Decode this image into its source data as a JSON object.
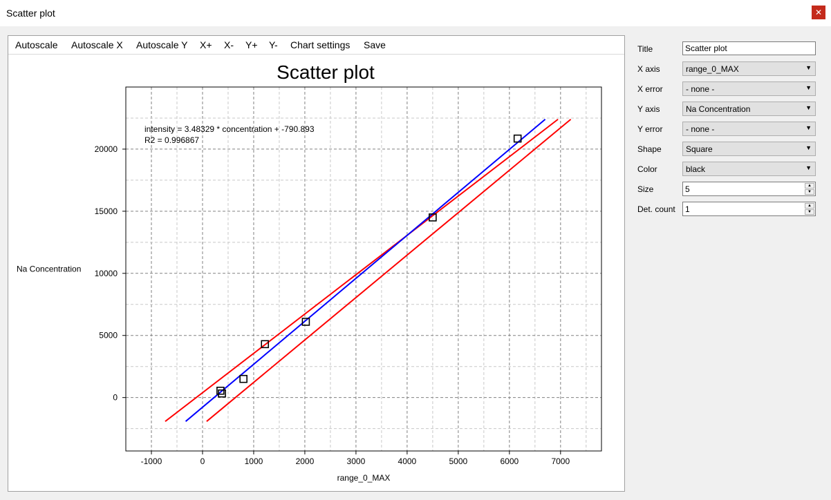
{
  "window": {
    "title": "Scatter plot",
    "close_icon": "close-icon",
    "close_label": "✕"
  },
  "menu": {
    "items": [
      "Autoscale",
      "Autoscale X",
      "Autoscale Y",
      "X+",
      "X-",
      "Y+",
      "Y-",
      "Chart settings",
      "Save"
    ]
  },
  "colors": {
    "fit_line": "#0000ff",
    "band_line": "#ff0000",
    "marker": "#000000",
    "close_button": "#c42b1c"
  },
  "chart_data": {
    "type": "scatter",
    "title": "Scatter plot",
    "xlabel": "range_0_MAX",
    "ylabel": "Na Concentration",
    "xlim": [
      -1500,
      7800
    ],
    "ylim": [
      -4300,
      25000
    ],
    "xticks": [
      -1000,
      0,
      1000,
      2000,
      3000,
      4000,
      5000,
      6000,
      7000
    ],
    "yticks": [
      0,
      5000,
      10000,
      15000,
      20000
    ],
    "grid": true,
    "marker_shape": "square",
    "points": [
      {
        "x": 350,
        "y": 550
      },
      {
        "x": 380,
        "y": 330
      },
      {
        "x": 800,
        "y": 1500
      },
      {
        "x": 1220,
        "y": 4300
      },
      {
        "x": 2020,
        "y": 6100
      },
      {
        "x": 4500,
        "y": 14500
      },
      {
        "x": 6160,
        "y": 20850
      }
    ],
    "fit_line": {
      "x": [
        -330,
        6700
      ],
      "y": [
        -1920,
        22400
      ]
    },
    "upper_band": {
      "x": [
        -730,
        6950
      ],
      "y": [
        -1920,
        22400
      ]
    },
    "lower_band": {
      "x": [
        80,
        7200
      ],
      "y": [
        -1920,
        22400
      ]
    },
    "annotation": {
      "equation": "intensity = 3.48329 * concentration + -790.893",
      "r2": "R2 = 0.996867"
    }
  },
  "properties": {
    "title": {
      "label": "Title",
      "value": "Scatter plot"
    },
    "x_axis": {
      "label": "X axis",
      "value": "range_0_MAX"
    },
    "x_error": {
      "label": "X error",
      "value": "- none -"
    },
    "y_axis": {
      "label": "Y axis",
      "value": "Na Concentration"
    },
    "y_error": {
      "label": "Y error",
      "value": "- none -"
    },
    "shape": {
      "label": "Shape",
      "value": "Square"
    },
    "color": {
      "label": "Color",
      "value": "black"
    },
    "size": {
      "label": "Size",
      "value": "5"
    },
    "det_count": {
      "label": "Det. count",
      "value": "1"
    }
  }
}
